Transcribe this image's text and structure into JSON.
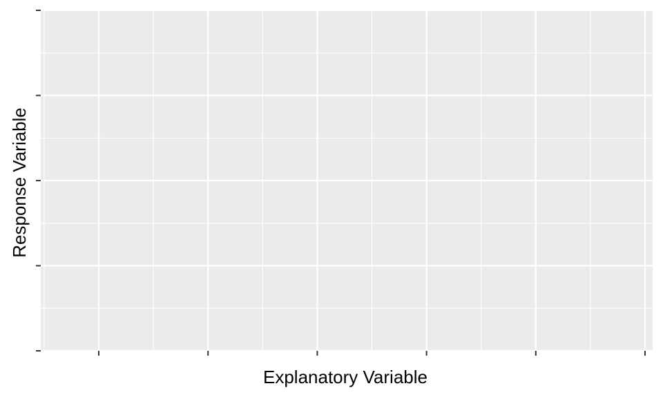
{
  "chart_data": {
    "type": "scatter",
    "title": "",
    "xlabel": "Explanatory Variable",
    "ylabel": "Response Variable",
    "x_major_ticks": 6,
    "y_major_ticks": 5,
    "x_tick_labels": [],
    "y_tick_labels": [],
    "series": [],
    "grid": true,
    "legend": "none",
    "colors": {
      "panel_background": "#ebebeb",
      "grid_line": "#ffffff",
      "tick": "#333333",
      "text": "#000000"
    }
  }
}
